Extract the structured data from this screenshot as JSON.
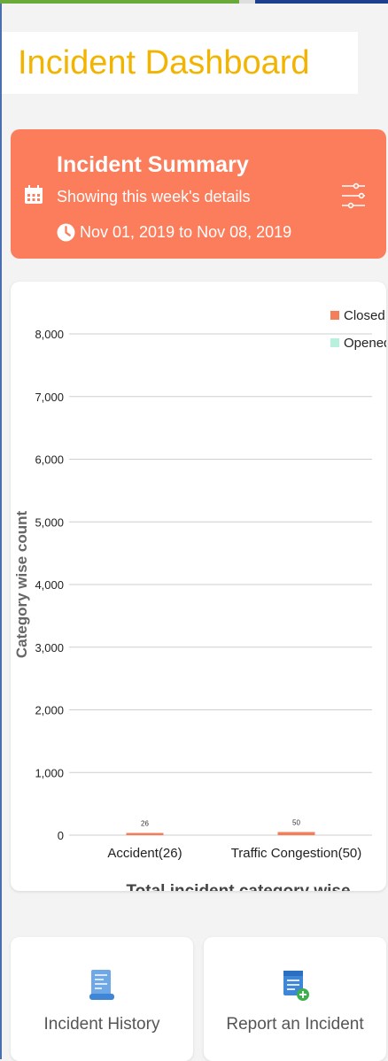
{
  "header": {
    "title": "Incident Dashboard"
  },
  "summary": {
    "title": "Incident Summary",
    "subtitle": "Showing this week's details",
    "date_range": "Nov 01, 2019 to Nov 08, 2019",
    "icons": [
      "calendar-icon",
      "clock-icon",
      "filter-sliders-icon"
    ]
  },
  "chart_data": {
    "type": "bar",
    "categories": [
      "Accident(26)",
      "Traffic Congestion(50)"
    ],
    "series": [
      {
        "name": "Closed",
        "values": [
          26,
          50
        ],
        "color": "#f47d5a"
      },
      {
        "name": "Opened",
        "values": [
          0,
          0
        ],
        "color": "#b8f0de"
      }
    ],
    "data_labels": [
      "26",
      "50"
    ],
    "ylabel": "Category wise count",
    "xlabel": "Total incident category wise",
    "ylim": [
      0,
      8000
    ],
    "yticks": [
      0,
      1000,
      2000,
      3000,
      4000,
      5000,
      6000,
      7000,
      8000
    ],
    "ytick_labels": [
      "0",
      "1,000",
      "2,000",
      "3,000",
      "4,000",
      "5,000",
      "6,000",
      "7,000",
      "8,000"
    ],
    "grid": true,
    "legend_position": "top-right"
  },
  "tiles": [
    {
      "label": "Incident History",
      "icon": "history-scroll-icon"
    },
    {
      "label": "Report an Incident",
      "icon": "report-add-icon"
    }
  ],
  "colors": {
    "title": "#f2b400",
    "summary_bg": "#fb7d5b",
    "closed": "#f47d5a",
    "opened": "#b8f0de"
  }
}
